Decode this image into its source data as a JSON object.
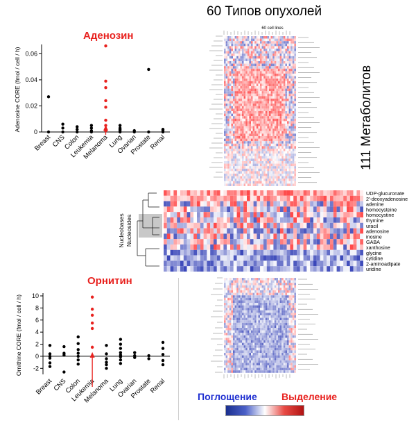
{
  "title": "60 Типов опухолей",
  "metabolites_label": "111 Метаболитов",
  "legend": {
    "uptake": "Поглощение",
    "secretion": "Выделение"
  },
  "heatmap": {
    "top_header": "60 cell lines",
    "side_labels": [
      "Nucleobases",
      "Nucleosides"
    ],
    "zoomed_rows": [
      "UDP-glucuronate",
      "2'-deoxyadenosine",
      "adenine",
      "homocysteine",
      "homocystine",
      "thymine",
      "uracil",
      "adenosine",
      "inosine",
      "GABA",
      "xanthosine",
      "glycine",
      "cytidine",
      "2-aminoadipate",
      "uridine"
    ]
  },
  "chart_data": [
    {
      "type": "scatter",
      "title": "Аденозин",
      "ylabel": "Adenosine CORE (fmol / cell / h)",
      "categories": [
        "Breast",
        "CNS",
        "Colon",
        "Leukemia",
        "Melanoma",
        "Lung",
        "Ovarian",
        "Prostate",
        "Renal"
      ],
      "ylim": [
        0,
        0.065
      ],
      "yticks": [
        "0",
        "0.02",
        "0.04",
        "0.06"
      ],
      "highlight_category": "Melanoma",
      "series": [
        {
          "points": [
            {
              "c": 0,
              "v": [
                0.027,
                0
              ]
            },
            {
              "c": 1,
              "v": [
                0.006,
                0.003,
                0
              ]
            },
            {
              "c": 2,
              "v": [
                0.004,
                0.002,
                0
              ]
            },
            {
              "c": 3,
              "v": [
                0.005,
                0.003,
                0.001,
                0
              ]
            },
            {
              "c": 4,
              "v": [
                0.066,
                0.039,
                0.034,
                0.024,
                0.019,
                0.009,
                0.005,
                0.001
              ]
            },
            {
              "c": 5,
              "v": [
                0.005,
                0.003,
                0.002,
                0.001,
                0
              ]
            },
            {
              "c": 6,
              "v": [
                0.001,
                0
              ]
            },
            {
              "c": 7,
              "v": [
                0.048,
                0
              ]
            },
            {
              "c": 8,
              "v": [
                0.002,
                0.001,
                0
              ]
            }
          ]
        }
      ]
    },
    {
      "type": "scatter",
      "title": "Орнитин",
      "ylabel": "Ornithine CORE (fmol / cell / h)",
      "categories": [
        "Breast",
        "CNS",
        "Colon",
        "Leukemia",
        "Melanoma",
        "Lung",
        "Ovarian",
        "Prostate",
        "Renal"
      ],
      "ylim": [
        -3,
        10
      ],
      "yticks": [
        "-2",
        "0",
        "2",
        "4",
        "6",
        "8",
        "10"
      ],
      "highlight_category": "Leukemia",
      "series": [
        {
          "points": [
            {
              "c": 0,
              "v": [
                1.8,
                0.4,
                0,
                -0.3,
                -1.1,
                -1.7
              ]
            },
            {
              "c": 1,
              "v": [
                1.6,
                0.5,
                0.2,
                -2.6
              ]
            },
            {
              "c": 2,
              "v": [
                3.2,
                2.1,
                1.1,
                0.5,
                0,
                -0.6,
                -1.3
              ]
            },
            {
              "c": 3,
              "v": [
                9.8,
                7.8,
                6.8,
                5.5,
                4.6,
                1.5
              ]
            },
            {
              "c": 4,
              "v": [
                1.8,
                0.4,
                -0.4,
                -1.0,
                -1.4,
                -2.0
              ]
            },
            {
              "c": 5,
              "v": [
                2.8,
                2.0,
                1.3,
                0.6,
                0.2,
                -0.1,
                -0.6,
                -1.2
              ]
            },
            {
              "c": 6,
              "v": [
                0.6,
                0.1,
                -0.2
              ]
            },
            {
              "c": 7,
              "v": [
                0.1,
                -0.4
              ]
            },
            {
              "c": 8,
              "v": [
                2.3,
                1.3,
                0.3,
                -0.7,
                -1.4
              ]
            }
          ]
        }
      ]
    }
  ],
  "colors": {
    "highlight": "#e8211e",
    "normal": "#000000",
    "uptake": "#1f2fd1",
    "secretion": "#e8211e"
  }
}
